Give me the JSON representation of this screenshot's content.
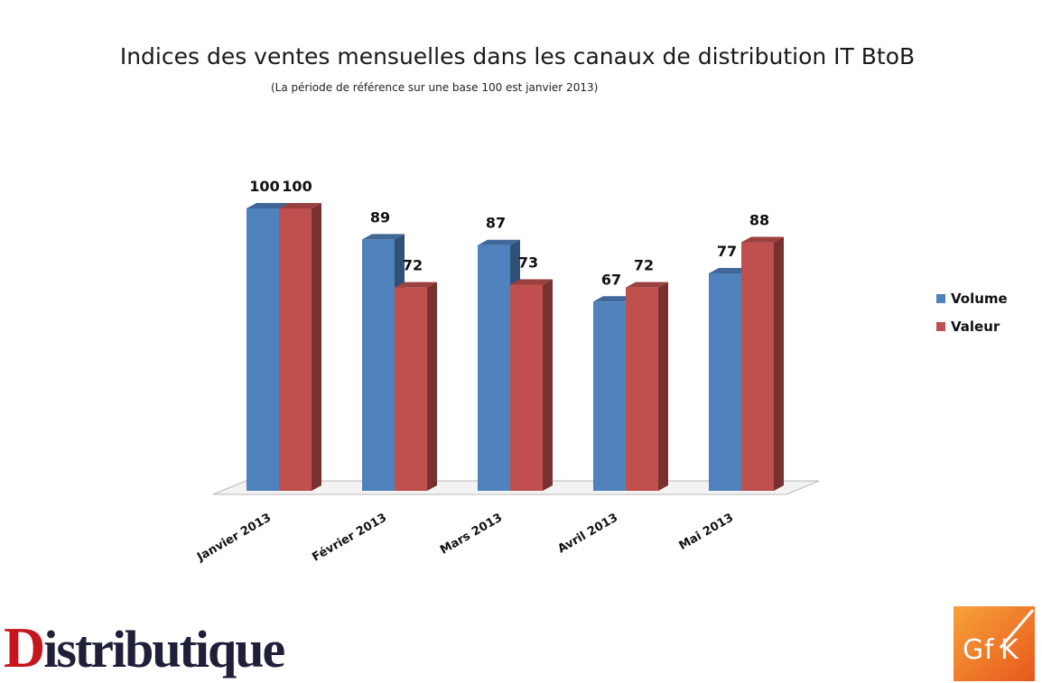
{
  "chart_data": {
    "type": "bar",
    "title": "Indices des ventes mensuelles dans les canaux de distribution IT BtoB",
    "subtitle": "(La période de référence sur une base 100 est janvier 2013)",
    "categories": [
      "Janvier 2013",
      "Février 2013",
      "Mars 2013",
      "Avril 2013",
      "Mai 2013"
    ],
    "series": [
      {
        "name": "Volume",
        "values": [
          100,
          89,
          87,
          67,
          77
        ],
        "color": "#4f81bd"
      },
      {
        "name": "Valeur",
        "values": [
          100,
          72,
          73,
          72,
          88
        ],
        "color": "#c0504d"
      }
    ],
    "ylim": [
      0,
      100
    ],
    "grid": false,
    "legend_position": "right",
    "style": "3d-clustered-column"
  },
  "logos": {
    "distributique": "Distributique",
    "gfk": "GfK"
  }
}
